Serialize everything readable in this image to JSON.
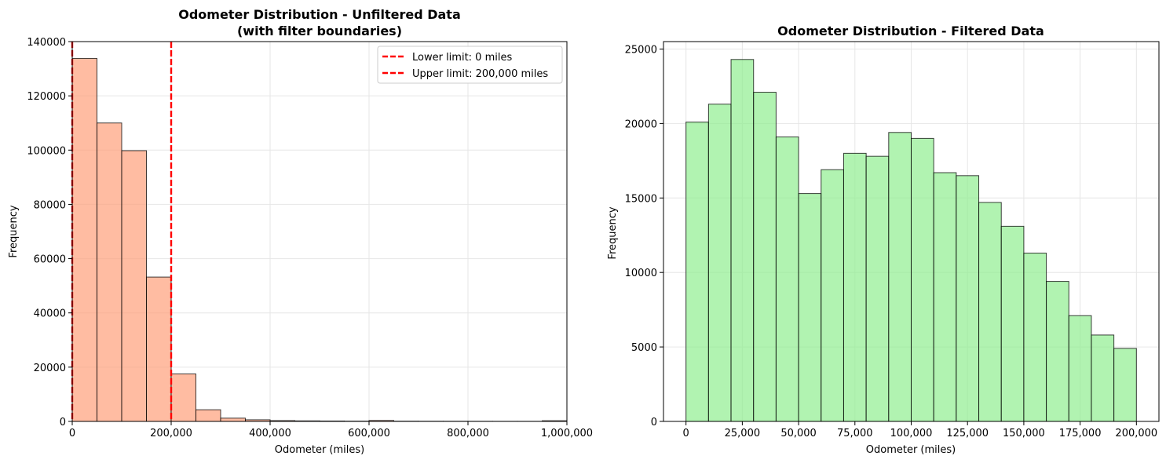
{
  "chart_data": [
    {
      "type": "bar",
      "title": "Odometer Distribution - Unfiltered Data",
      "subtitle": "(with filter boundaries)",
      "xlabel": "Odometer (miles)",
      "ylabel": "Frequency",
      "xlim": [
        0,
        1000000
      ],
      "ylim": [
        0,
        140000
      ],
      "xticks": [
        0,
        200000,
        400000,
        600000,
        800000,
        1000000
      ],
      "xtick_labels": [
        "0",
        "200,000",
        "400,000",
        "600,000",
        "800,000",
        "1,000,000"
      ],
      "yticks": [
        0,
        20000,
        40000,
        60000,
        80000,
        100000,
        120000,
        140000
      ],
      "ytick_labels": [
        "0",
        "20000",
        "40000",
        "60000",
        "80000",
        "100000",
        "120000",
        "140000"
      ],
      "grid": true,
      "bar_color": "#ffa07a",
      "bin_width": 50000,
      "bin_starts": [
        0,
        50000,
        100000,
        150000,
        200000,
        250000,
        300000,
        350000,
        400000,
        450000,
        500000,
        550000,
        600000,
        650000,
        700000,
        750000,
        800000,
        850000,
        900000,
        950000
      ],
      "values": [
        133800,
        110000,
        99800,
        53200,
        17500,
        4300,
        1200,
        600,
        300,
        200,
        150,
        100,
        350,
        80,
        60,
        50,
        40,
        30,
        30,
        250
      ],
      "vlines": [
        {
          "x": 0,
          "label": "Lower limit: 0 miles",
          "color": "#ff0000"
        },
        {
          "x": 200000,
          "label": "Upper limit: 200,000 miles",
          "color": "#ff0000"
        }
      ],
      "legend_placement": "top-right"
    },
    {
      "type": "bar",
      "title": "Odometer Distribution - Filtered Data",
      "xlabel": "Odometer (miles)",
      "ylabel": "Frequency",
      "xlim": [
        -10000,
        210000
      ],
      "ylim": [
        0,
        25500
      ],
      "xticks": [
        0,
        25000,
        50000,
        75000,
        100000,
        125000,
        150000,
        175000,
        200000
      ],
      "xtick_labels": [
        "0",
        "25,000",
        "50,000",
        "75,000",
        "100,000",
        "125,000",
        "150,000",
        "175,000",
        "200,000"
      ],
      "yticks": [
        0,
        5000,
        10000,
        15000,
        20000,
        25000
      ],
      "ytick_labels": [
        "0",
        "5000",
        "10000",
        "15000",
        "20000",
        "25000"
      ],
      "grid": true,
      "bar_color": "#90ee90",
      "bin_width": 10000,
      "bin_starts": [
        0,
        10000,
        20000,
        30000,
        40000,
        50000,
        60000,
        70000,
        80000,
        90000,
        100000,
        110000,
        120000,
        130000,
        140000,
        150000,
        160000,
        170000,
        180000,
        190000
      ],
      "values": [
        20100,
        21300,
        24300,
        22100,
        19100,
        15300,
        16900,
        18000,
        17800,
        19400,
        19000,
        16700,
        16500,
        14700,
        13100,
        11300,
        9400,
        7100,
        5800,
        4900
      ]
    }
  ]
}
